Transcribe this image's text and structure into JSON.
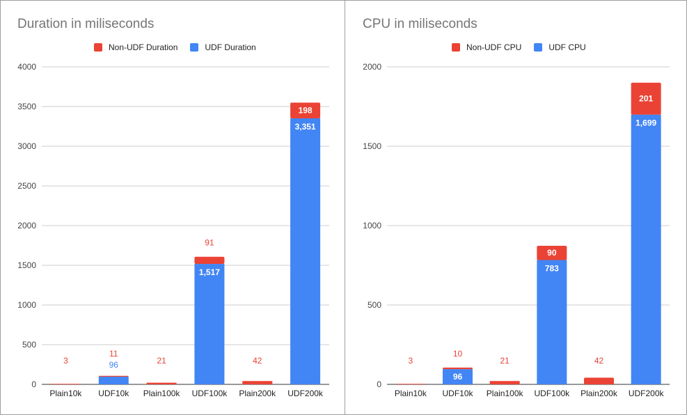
{
  "colors": {
    "udf": "#4285f4",
    "non_udf": "#ea4335",
    "grid": "#cccccc",
    "axis": "#333333",
    "label": "#444444"
  },
  "chart_data": [
    {
      "type": "bar",
      "stacked": true,
      "title": "Duration in miliseconds",
      "categories": [
        "Plain10k",
        "UDF10k",
        "Plain100k",
        "UDF100k",
        "Plain200k",
        "UDF200k"
      ],
      "series": [
        {
          "name": "UDF Duration",
          "values": [
            0,
            96,
            0,
            1517,
            0,
            3351
          ],
          "labels": [
            "",
            "96",
            "",
            "1,517",
            "",
            "3,351"
          ]
        },
        {
          "name": "Non-UDF Duration",
          "values": [
            3,
            11,
            21,
            91,
            42,
            198
          ],
          "labels": [
            "3",
            "11",
            "21",
            "91",
            "42",
            "198"
          ]
        }
      ],
      "ylim": [
        0,
        4000
      ],
      "yticks": [
        "0",
        "500",
        "1000",
        "1500",
        "2000",
        "2500",
        "3000",
        "3500",
        "4000"
      ],
      "legend_position": "top",
      "grid": true
    },
    {
      "type": "bar",
      "stacked": true,
      "title": "CPU in miliseconds",
      "categories": [
        "Plain10k",
        "UDF10k",
        "Plain100k",
        "UDF100k",
        "Plain200k",
        "UDF200k"
      ],
      "series": [
        {
          "name": "UDF CPU",
          "values": [
            0,
            96,
            0,
            783,
            0,
            1699
          ],
          "labels": [
            "",
            "96",
            "",
            "783",
            "",
            "1,699"
          ]
        },
        {
          "name": "Non-UDF CPU",
          "values": [
            3,
            10,
            21,
            90,
            42,
            201
          ],
          "labels": [
            "3",
            "10",
            "21",
            "90",
            "42",
            "201"
          ]
        }
      ],
      "ylim": [
        0,
        2000
      ],
      "yticks": [
        "0",
        "500",
        "1000",
        "1500",
        "2000"
      ],
      "legend_position": "top",
      "grid": true
    }
  ]
}
